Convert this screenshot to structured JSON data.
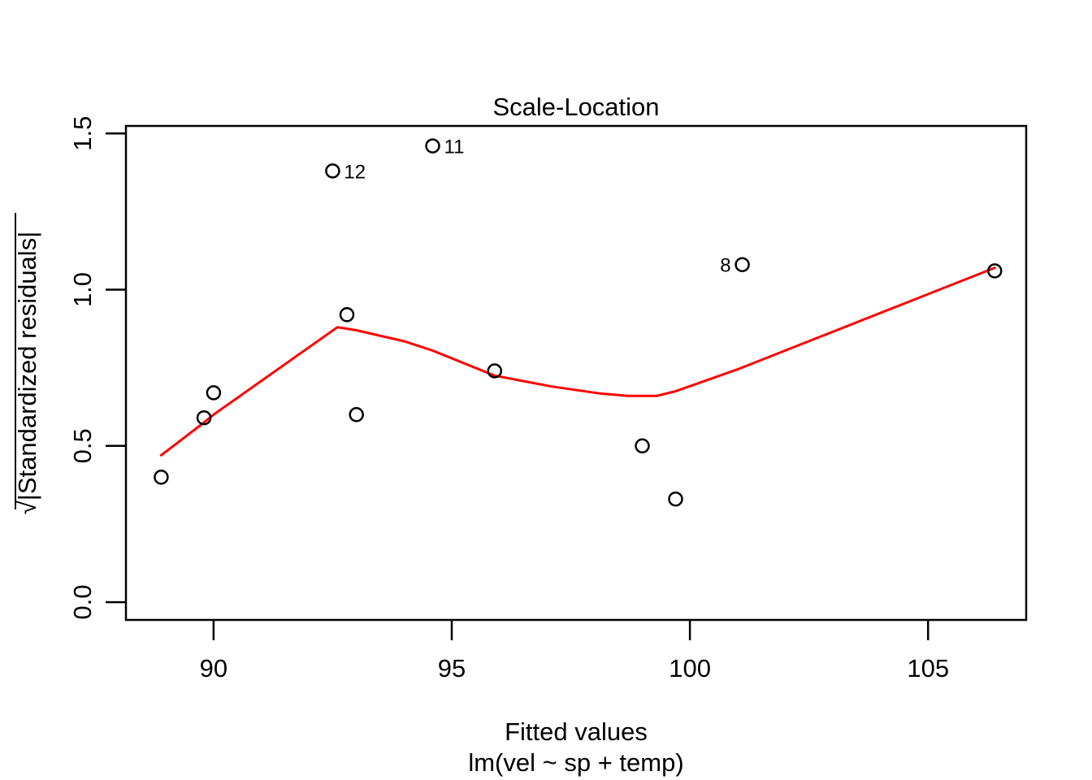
{
  "figure": {
    "title": "Scale-Location",
    "xlabel": "Fitted values",
    "xlabel_sub": "lm(vel ~ sp + temp)",
    "ylabel": "√|Standardized residuals|"
  },
  "chart_data": {
    "type": "scatter",
    "title": "Scale-Location",
    "xlabel": "Fitted values",
    "xlabel_sub": "lm(vel ~ sp + temp)",
    "ylabel": "sqrt(|Standardized residuals|)",
    "xlim": [
      88.16,
      107.06
    ],
    "ylim": [
      -0.057,
      1.524
    ],
    "x_ticks": [
      90,
      95,
      100,
      105
    ],
    "x_tick_labels": [
      "90",
      "95",
      "100",
      "105"
    ],
    "y_ticks": [
      0.0,
      0.5,
      1.0,
      1.5
    ],
    "y_tick_labels": [
      "0.0",
      "0.5",
      "1.0",
      "1.5"
    ],
    "grid": false,
    "legend": "none",
    "points": [
      {
        "x": 88.9,
        "y": 0.4
      },
      {
        "x": 89.8,
        "y": 0.59
      },
      {
        "x": 90.0,
        "y": 0.67
      },
      {
        "x": 92.5,
        "y": 1.38,
        "label": "12",
        "label_side": "right"
      },
      {
        "x": 92.8,
        "y": 0.92
      },
      {
        "x": 93.0,
        "y": 0.6
      },
      {
        "x": 94.6,
        "y": 1.46,
        "label": "11",
        "label_side": "right"
      },
      {
        "x": 95.9,
        "y": 0.74
      },
      {
        "x": 99.0,
        "y": 0.5
      },
      {
        "x": 99.7,
        "y": 0.33
      },
      {
        "x": 101.1,
        "y": 1.08,
        "label": "8",
        "label_side": "left"
      },
      {
        "x": 106.4,
        "y": 1.06
      }
    ],
    "smooth_line": {
      "name": "lowess-smoother",
      "color": "#FF0000",
      "points": [
        [
          88.9,
          0.47
        ],
        [
          89.8,
          0.575
        ],
        [
          90.0,
          0.6
        ],
        [
          92.6,
          0.88
        ],
        [
          93.0,
          0.87
        ],
        [
          94.0,
          0.835
        ],
        [
          94.6,
          0.805
        ],
        [
          95.9,
          0.725
        ],
        [
          97.1,
          0.69
        ],
        [
          98.1,
          0.668
        ],
        [
          98.7,
          0.66
        ],
        [
          99.3,
          0.66
        ],
        [
          99.7,
          0.675
        ],
        [
          101.0,
          0.745
        ],
        [
          106.4,
          1.07
        ]
      ]
    },
    "colors": {
      "points": "#000000",
      "line": "#FF0000",
      "axis": "#000000",
      "background": "#FFFFFF"
    }
  }
}
